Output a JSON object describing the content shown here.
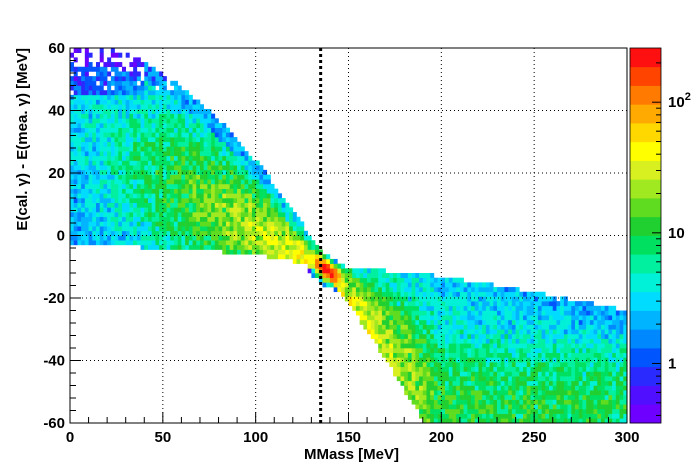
{
  "chart_data": {
    "type": "heatmap",
    "title": "",
    "xlabel": "MMass [MeV]",
    "ylabel": "E(cal. γ) - E(mea. γ) [MeV]",
    "xlim": [
      0,
      300
    ],
    "ylim": [
      -60,
      60
    ],
    "x_ticks": [
      0,
      50,
      100,
      150,
      200,
      250,
      300
    ],
    "y_ticks": [
      -60,
      -40,
      -20,
      0,
      20,
      40,
      60
    ],
    "x_tick_labels": [
      "0",
      "50",
      "100",
      "150",
      "200",
      "250",
      "300"
    ],
    "y_tick_labels": [
      "-60",
      "-40",
      "-20",
      "0",
      "20",
      "40",
      "60"
    ],
    "grid": true,
    "z_scale": "log",
    "z_range": [
      0.35,
      260
    ],
    "z_labels": [
      {
        "value": 1,
        "text": "1"
      },
      {
        "value": 10,
        "text": "10"
      },
      {
        "value": 100,
        "base": "10",
        "exp": "2"
      }
    ],
    "vertical_line": {
      "x": 135,
      "style": "dotted"
    },
    "colors": {
      "palette": [
        "#6e00ff",
        "#5010ff",
        "#2a2aff",
        "#0055ff",
        "#0088ff",
        "#00b4ff",
        "#00dcff",
        "#00f0d8",
        "#00f0a0",
        "#00e060",
        "#20d030",
        "#60dc20",
        "#a0e820",
        "#d8f020",
        "#ffff00",
        "#ffd800",
        "#ffaa00",
        "#ff7a00",
        "#ff4400",
        "#ff1010"
      ],
      "dotted_line": "#000000"
    },
    "density_model": {
      "upper_band": {
        "x_range": [
          0,
          140
        ],
        "center_at_x0": 30,
        "center_at_x140": -12,
        "width_at_x0": 30,
        "width_at_x140": 3
      },
      "lower_edge": {
        "points": [
          [
            0,
            -2
          ],
          [
            50,
            -3
          ],
          [
            100,
            -5
          ],
          [
            135,
            -9
          ],
          [
            150,
            -11
          ],
          [
            200,
            -14
          ],
          [
            250,
            -19
          ],
          [
            300,
            -25
          ]
        ]
      },
      "lower_band": {
        "x_range": [
          140,
          200
        ],
        "center_at_x140": -12,
        "center_at_x200": -55,
        "width_at_x140": 3,
        "width_at_x200": 20
      },
      "peak": {
        "x": 138,
        "y": -11,
        "max_count": 250
      }
    }
  }
}
